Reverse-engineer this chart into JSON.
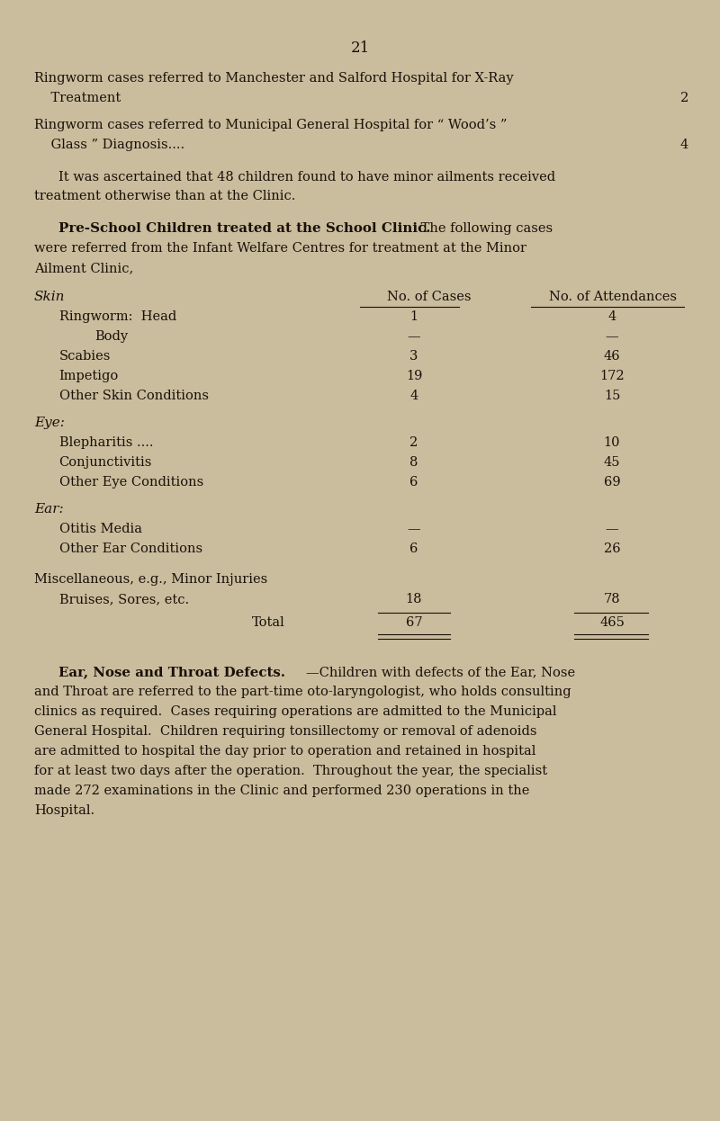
{
  "bg_color": "#c9bd9e",
  "text_color": "#1a1008",
  "page_number": "21",
  "line1": "Ringworm cases referred to Manchester and Salford Hospital for X-Ray",
  "line2": "    Treatment",
  "line2_dots": ".... .... .... .... .... .... .... .... ....",
  "line2_value": "2",
  "line3": "Ringworm cases referred to Municipal General Hospital for “ Wood’s ”",
  "line4": "    Glass ” Diagnosis....",
  "line4_dots": ".... .... .... .... .... .... .... ....",
  "line4_value": "4",
  "para1a": "It was ascertained that 48 children found to have minor ailments received",
  "para1b": "treatment otherwise than at the Clinic.",
  "section_bold": "Pre-School Children treated at the School Clinic.",
  "section_normal": " The following cases",
  "section_line2": "were referred from the Infant Welfare Centres for treatment at the Minor",
  "section_line3": "Ailment Clinic,",
  "skin_header": "Skin",
  "col_cases": "No. of Cases",
  "col_attend": "No. of Attendances",
  "table_rows": [
    {
      "label": "Ringworm:  Head",
      "indent": 0.55,
      "dots": "....  ....  ....",
      "cases": "1",
      "dots2": "....",
      "attend": "4"
    },
    {
      "label": "Body",
      "indent": 1.35,
      "dots": "....  ....  ....",
      "cases": "—",
      "dots2": "....",
      "attend": "—"
    },
    {
      "label": "Scabies",
      "indent": 0.55,
      "dots": "....  ....  ....  ....  ....",
      "cases": "3",
      "dots2": "....",
      "attend": "46"
    },
    {
      "label": "Impetigo",
      "indent": 0.55,
      "dots": "....  ....  ....  ....  ....",
      "cases": "19",
      "dots2": "....",
      "attend": "172"
    },
    {
      "label": "Other Skin Conditions",
      "indent": 0.55,
      "dots": "....  ....  ....",
      "cases": "4",
      "dots2": "....",
      "attend": "15"
    }
  ],
  "eye_header": "Eye:",
  "eye_rows": [
    {
      "label": "Blepharitis ....",
      "indent": 0.55,
      "dots": "....  ....  ....  ....",
      "cases": "2",
      "dots2": "....",
      "attend": "10"
    },
    {
      "label": "Conjunctivitis",
      "indent": 0.55,
      "dots": "....  ....  ....  ....",
      "cases": "8",
      "dots2": "....",
      "attend": "45"
    },
    {
      "label": "Other Eye Conditions",
      "indent": 0.55,
      "dots": "....  ....  ....",
      "cases": "6",
      "dots2": "....",
      "attend": "69"
    }
  ],
  "ear_header": "Ear:",
  "ear_rows": [
    {
      "label": "Otitis Media",
      "indent": 0.55,
      "dots": "....  ....  ....  ....  ....",
      "cases": "—",
      "dots2": "....",
      "attend": "—"
    },
    {
      "label": "Other Ear Conditions",
      "indent": 0.55,
      "dots": "....  ....  .....,",
      "cases": "6",
      "dots2": "....",
      "attend": "26"
    }
  ],
  "misc_header": "Miscellaneous, e.g., Minor Injuries",
  "misc_rows": [
    {
      "label": "Bruises, Sores, etc.",
      "indent": 0.55,
      "dots": "....  ....  ....",
      "cases": "18",
      "dots2": "....",
      "attend": "78"
    }
  ],
  "total_label": "Total",
  "total_dots": "....",
  "total_cases": "67",
  "total_dots2": "....",
  "total_attend": "465",
  "ent_bold": "Ear, Nose and Throat Defects.",
  "ent_dash": "—",
  "ent_line1": "Children with defects of the Ear, Nose",
  "ent_line2": "and Throat are referred to the part-time oto-laryngologist, who holds consulting",
  "ent_line3": "clinics as required.  Cases requiring operations are admitted to the Municipal",
  "ent_line4": "General Hospital.  Children requiring tonsillectomy or removal of adenoids",
  "ent_line5": "are admitted to hospital the day prior to operation and retained in hospital",
  "ent_line6": "for at least two days after the operation.  Throughout the year, the specialist",
  "ent_line7": "made 272 examinations in the Clinic and performed 230 operations in the",
  "ent_line8": "Hospital."
}
